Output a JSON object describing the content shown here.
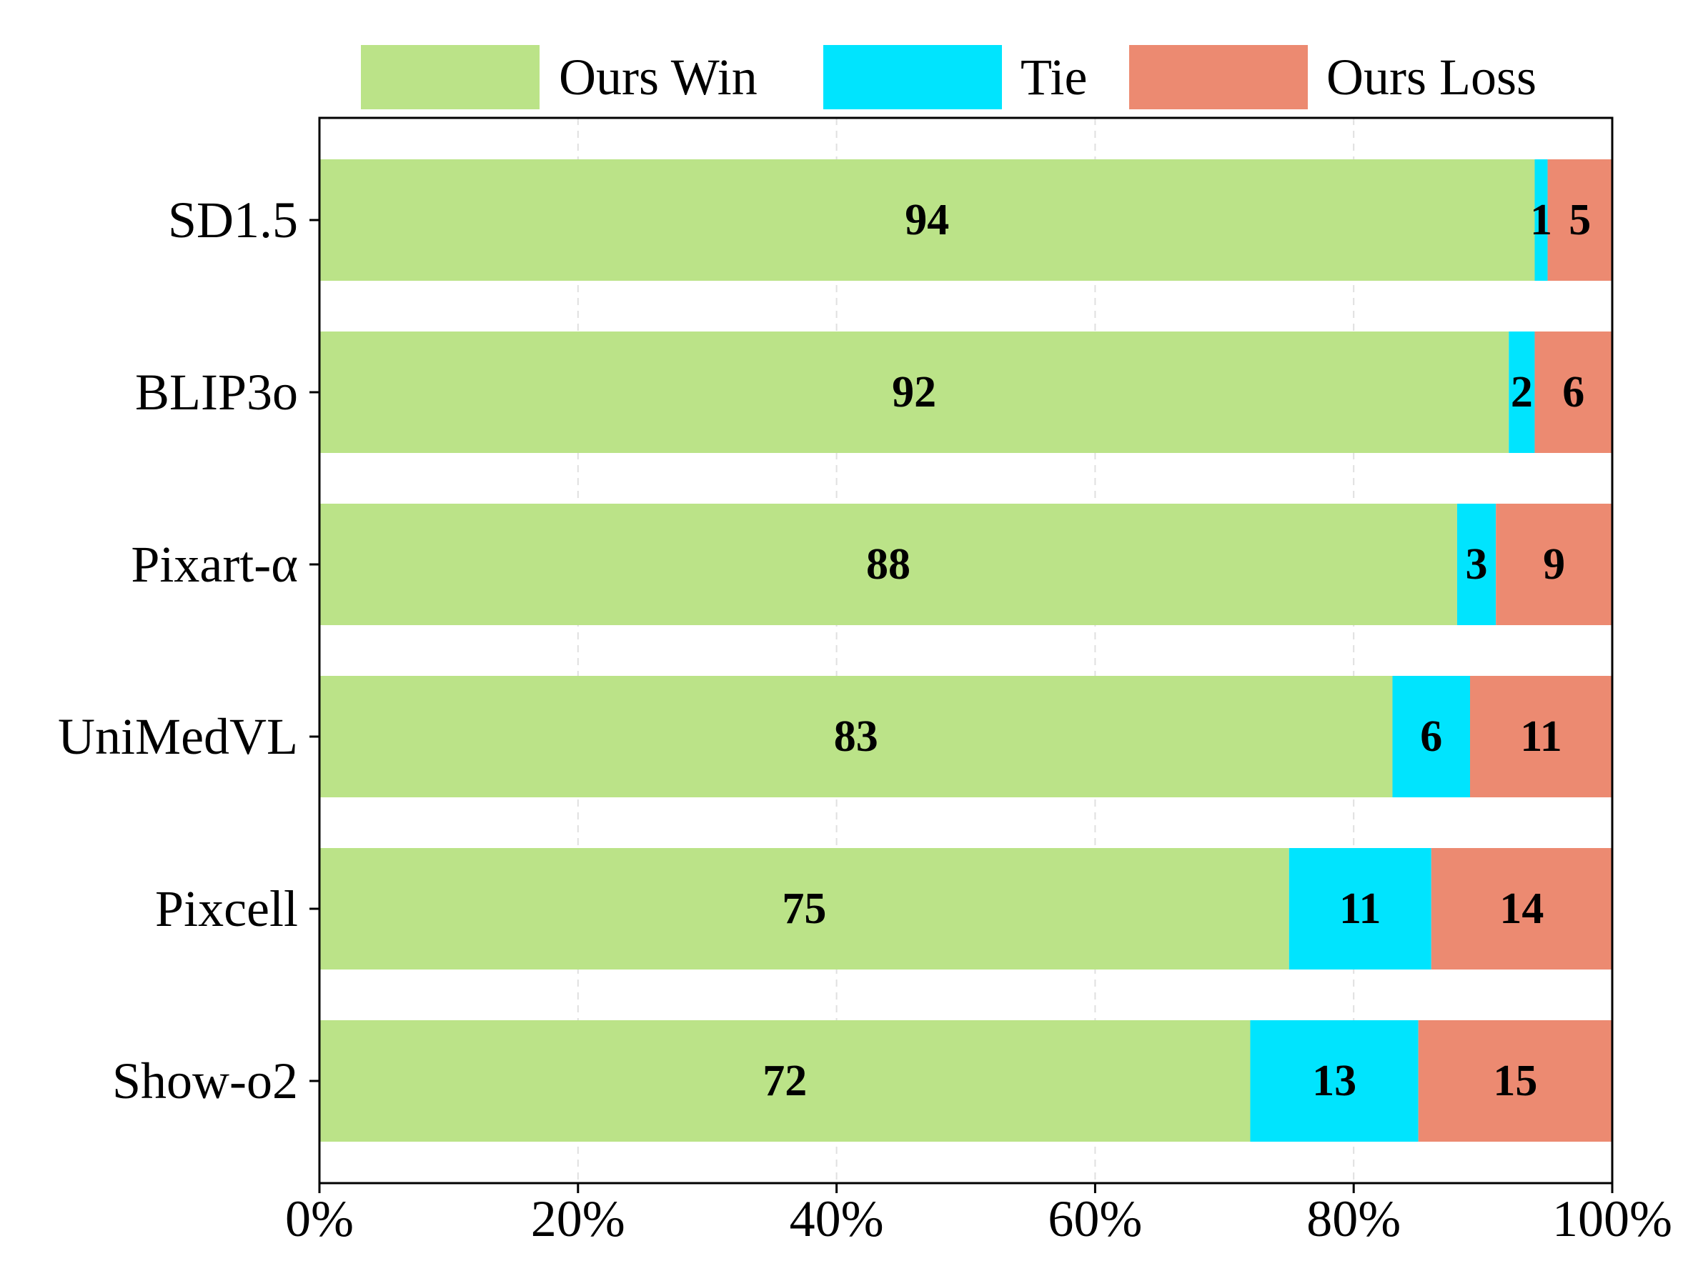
{
  "chart_data": {
    "type": "bar",
    "orientation": "horizontal",
    "stacked": true,
    "title": "",
    "xlabel": "",
    "ylabel": "",
    "categories": [
      "SD1.5",
      "BLIP3o",
      "Pixart-α",
      "UniMedVL",
      "Pixcell",
      "Show-o2"
    ],
    "series": [
      {
        "name": "Ours Win",
        "color": "#bbe388",
        "values": [
          94,
          92,
          88,
          83,
          75,
          72
        ]
      },
      {
        "name": "Tie",
        "color": "#00e4fe",
        "values": [
          1,
          2,
          3,
          6,
          11,
          13
        ]
      },
      {
        "name": "Ours Loss",
        "color": "#ec8a71",
        "values": [
          5,
          6,
          9,
          11,
          14,
          15
        ]
      }
    ],
    "xlim": [
      0,
      100
    ],
    "x_ticks": [
      "0%",
      "20%",
      "40%",
      "60%",
      "80%",
      "100%"
    ],
    "x_tick_values": [
      0,
      20,
      40,
      60,
      80,
      100
    ],
    "grid": "vertical-dashed",
    "legend_position": "top"
  }
}
